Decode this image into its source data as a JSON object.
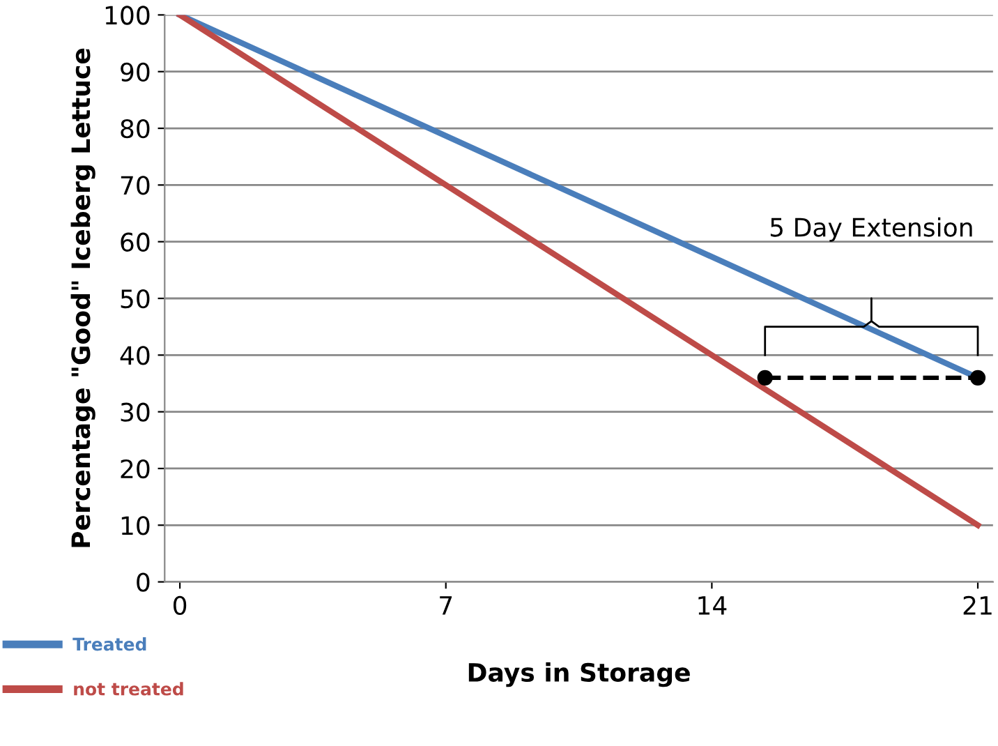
{
  "chart_data": {
    "type": "line",
    "xlabel": "Days in Storage",
    "ylabel": "Percentage \"Good\" Iceberg Lettuce",
    "x": [
      0,
      21
    ],
    "series": [
      {
        "name": "Treated",
        "color": "#4a7ebb",
        "values": [
          100,
          36
        ]
      },
      {
        "name": "not treated",
        "color": "#be4b48",
        "values": [
          100,
          10
        ]
      },
      {
        "type": "line",
        "x": [
          15.4,
          21
        ],
        "values": [
          36,
          36
        ],
        "color": "#000000",
        "line_style": "dashed",
        "marker": "circle"
      }
    ],
    "xlim": [
      -0.4,
      21.4
    ],
    "ylim": [
      0,
      100
    ],
    "xticks": [
      0,
      7,
      14,
      21
    ],
    "yticks": [
      0,
      10,
      20,
      30,
      40,
      50,
      60,
      70,
      80,
      90,
      100
    ],
    "grid": "y",
    "legend": "bottom left",
    "marker": "none",
    "line_style": "solid",
    "annotations": [
      "5 Day Extension"
    ]
  }
}
